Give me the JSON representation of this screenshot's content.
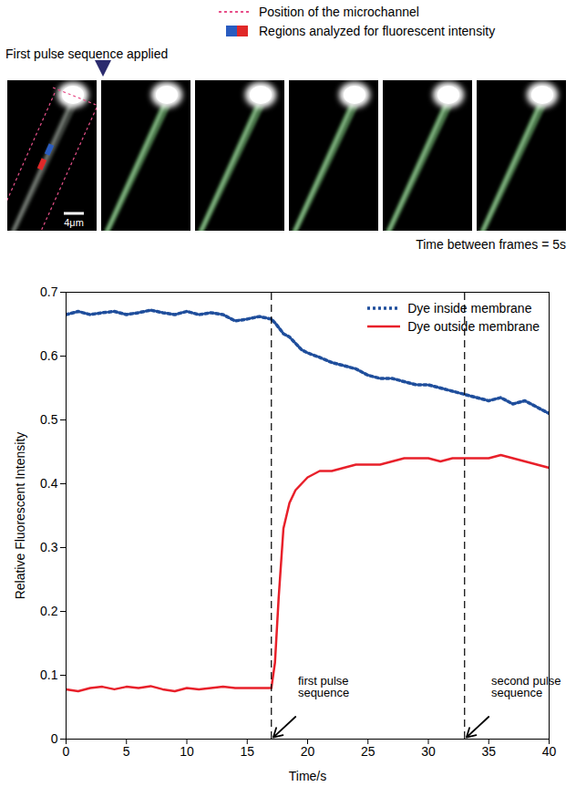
{
  "figure_panel": {
    "legend": [
      {
        "label": "Position of the microchannel",
        "color": "#e8508a",
        "line_style": "dotted"
      },
      {
        "label": "Regions analyzed for fluorescent intensity",
        "colors": [
          "#2a5cc0",
          "#e02828"
        ]
      }
    ],
    "annotation": "First pulse sequence applied",
    "scale_bar": "4μm",
    "caption": "Time between frames = 5s"
  },
  "chart_data": {
    "type": "line",
    "x_label": "Time/s",
    "y_label": "Relative Fluorescent Intensity",
    "x": [
      0,
      1,
      2,
      3,
      4,
      5,
      6,
      7,
      8,
      9,
      10,
      11,
      12,
      13,
      14,
      15,
      16,
      17,
      17.3,
      17.6,
      18,
      18.5,
      19,
      19.5,
      20,
      21,
      22,
      23,
      24,
      25,
      26,
      27,
      28,
      29,
      30,
      31,
      32,
      33,
      34,
      35,
      36,
      37,
      38,
      39,
      40
    ],
    "series": [
      {
        "name": "Dye inside membrane",
        "color": "#1f4e9c",
        "line_style": "dotted",
        "values": [
          0.665,
          0.67,
          0.665,
          0.668,
          0.67,
          0.665,
          0.668,
          0.672,
          0.668,
          0.665,
          0.67,
          0.665,
          0.668,
          0.665,
          0.655,
          0.658,
          0.662,
          0.658,
          0.652,
          0.645,
          0.635,
          0.63,
          0.62,
          0.61,
          0.605,
          0.598,
          0.59,
          0.585,
          0.58,
          0.57,
          0.565,
          0.565,
          0.56,
          0.555,
          0.555,
          0.55,
          0.545,
          0.54,
          0.535,
          0.53,
          0.535,
          0.525,
          0.53,
          0.52,
          0.51
        ]
      },
      {
        "name": "Dye outside membrane",
        "color": "#e8202a",
        "line_style": "solid",
        "values": [
          0.078,
          0.075,
          0.08,
          0.082,
          0.078,
          0.082,
          0.08,
          0.083,
          0.078,
          0.075,
          0.08,
          0.078,
          0.08,
          0.082,
          0.08,
          0.08,
          0.08,
          0.08,
          0.12,
          0.22,
          0.33,
          0.37,
          0.39,
          0.4,
          0.41,
          0.42,
          0.42,
          0.425,
          0.43,
          0.43,
          0.43,
          0.435,
          0.44,
          0.44,
          0.44,
          0.435,
          0.44,
          0.44,
          0.44,
          0.44,
          0.445,
          0.44,
          0.435,
          0.43,
          0.425
        ]
      }
    ],
    "xlim": [
      0,
      40
    ],
    "xticks": [
      0,
      5,
      10,
      15,
      20,
      25,
      30,
      35,
      40
    ],
    "ylim": [
      0,
      0.7
    ],
    "yticks": [
      0,
      0.1,
      0.2,
      0.3,
      0.4,
      0.5,
      0.6,
      0.7
    ],
    "grid": false,
    "legend": "top-right",
    "annotations": [
      {
        "x": 17,
        "text": "first pulse sequence"
      },
      {
        "x": 33,
        "text": "second pulse sequence"
      }
    ]
  }
}
